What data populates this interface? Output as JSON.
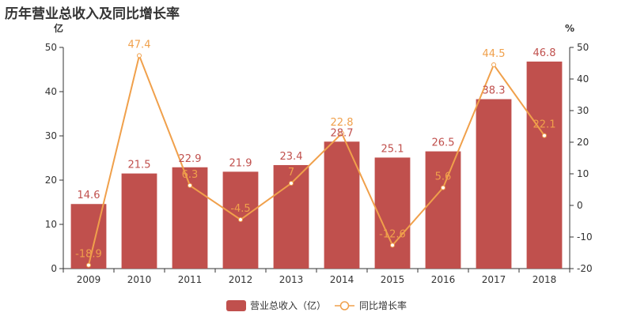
{
  "chart_data": {
    "type": "bar+line",
    "title": "历年营业总收入及同比增长率",
    "categories": [
      "2009",
      "2010",
      "2011",
      "2012",
      "2013",
      "2014",
      "2015",
      "2016",
      "2017",
      "2018"
    ],
    "series": [
      {
        "name": "营业总收入（亿）",
        "type": "bar",
        "axis": "left",
        "color": "#c0504d",
        "label_color": "#c0504d",
        "values": [
          14.6,
          21.5,
          22.9,
          21.9,
          23.4,
          28.7,
          25.1,
          26.5,
          38.3,
          46.8
        ]
      },
      {
        "name": "同比增长率",
        "type": "line",
        "axis": "right",
        "color": "#f0a04b",
        "label_color": "#f0a04b",
        "values": [
          -18.9,
          47.4,
          6.3,
          -4.5,
          7,
          22.8,
          -12.6,
          5.6,
          44.5,
          22.1
        ]
      }
    ],
    "left_axis": {
      "unit": "亿",
      "min": 0,
      "max": 50,
      "ticks": [
        0,
        10,
        20,
        30,
        40,
        50
      ]
    },
    "right_axis": {
      "unit": "%",
      "min": -20,
      "max": 50,
      "ticks": [
        -20,
        -10,
        0,
        10,
        20,
        30,
        40,
        50
      ]
    },
    "legend": "bottom-center",
    "grid": false
  }
}
